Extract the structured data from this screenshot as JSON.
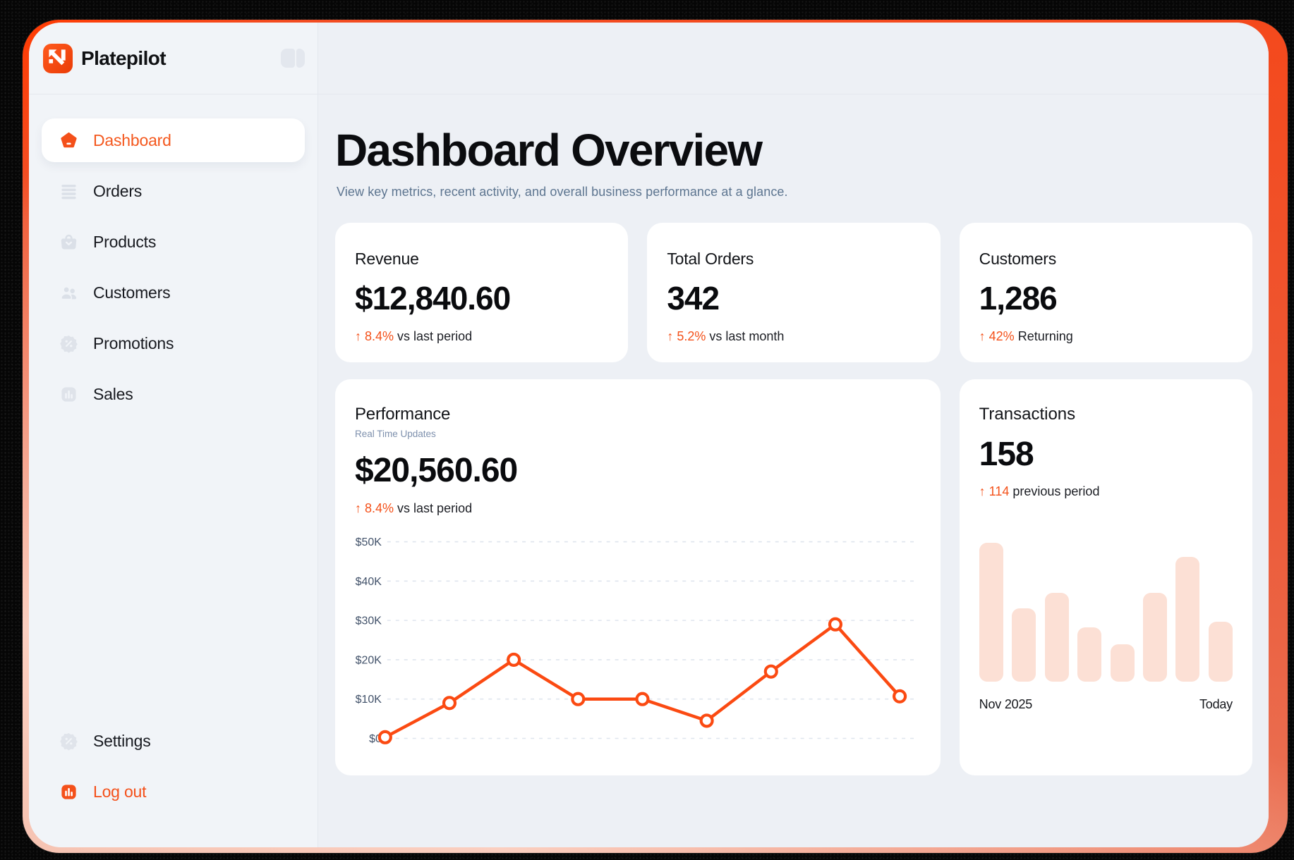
{
  "brand": {
    "name": "Platepilot"
  },
  "sidebar": {
    "items": [
      {
        "label": "Dashboard",
        "active": true
      },
      {
        "label": "Orders"
      },
      {
        "label": "Products"
      },
      {
        "label": "Customers"
      },
      {
        "label": "Promotions"
      },
      {
        "label": "Sales"
      }
    ],
    "footer": [
      {
        "label": "Settings"
      },
      {
        "label": "Log out",
        "accent": true
      }
    ]
  },
  "page": {
    "title": "Dashboard Overview",
    "subtitle": "View key metrics, recent activity, and overall business performance at a glance."
  },
  "metrics": [
    {
      "label": "Revenue",
      "value": "$12,840.60",
      "delta": "↑ 8.4%",
      "note": "vs last period"
    },
    {
      "label": "Total Orders",
      "value": "342",
      "delta": "↑ 5.2%",
      "note": "vs last month"
    },
    {
      "label": "Customers",
      "value": "1,286",
      "delta": "↑ 42%",
      "note": "Returning"
    }
  ],
  "performance": {
    "title": "Performance",
    "tag": "Real Time Updates",
    "value": "$20,560.60",
    "delta": "↑ 8.4%",
    "note": "vs last period"
  },
  "transactions": {
    "title": "Transactions",
    "value": "158",
    "delta": "↑ 114",
    "note": "previous period",
    "start_label": "Nov 2025",
    "end_label": "Today"
  },
  "colors": {
    "accent": "#f4501a",
    "line": "#fb4a12",
    "bar_fill": "#fce0d5",
    "grid": "#dfe5ee"
  },
  "chart_data": [
    {
      "type": "line",
      "title": "Performance",
      "values": [
        300,
        9000,
        20000,
        10000,
        10000,
        4500,
        17000,
        29000,
        10700
      ],
      "ylim": [
        0,
        50000
      ],
      "yticks": [
        0,
        10000,
        20000,
        30000,
        40000,
        50000
      ],
      "ytick_labels": [
        "$0",
        "$10K",
        "$20K",
        "$30K",
        "$40K",
        "$50K"
      ],
      "grid": "horizontal-dashed",
      "legend": "none",
      "line_color": "#fb4a12",
      "marker": "open-circle"
    },
    {
      "type": "bar",
      "title": "Transactions",
      "values_relative_pct": [
        100,
        53,
        64,
        39,
        27,
        64,
        90,
        43
      ],
      "x_range_labels": [
        "Nov 2025",
        "Today"
      ],
      "bar_color": "#fce0d5",
      "axis": "none"
    }
  ]
}
